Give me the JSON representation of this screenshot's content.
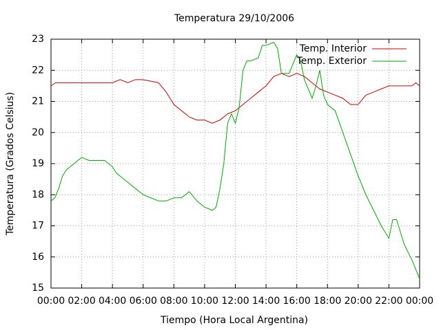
{
  "chart_data": {
    "type": "line",
    "title": "Temperatura 29/10/2006",
    "xlabel": "Tiempo (Hora Local Argentina)",
    "ylabel": "Temperatura (Grados Celsius)",
    "xlim": [
      0,
      24
    ],
    "xticks": [
      {
        "value": 0,
        "label": "00:00"
      },
      {
        "value": 2,
        "label": "02:00"
      },
      {
        "value": 4,
        "label": "04:00"
      },
      {
        "value": 6,
        "label": "06:00"
      },
      {
        "value": 8,
        "label": "08:00"
      },
      {
        "value": 10,
        "label": "10:00"
      },
      {
        "value": 12,
        "label": "12:00"
      },
      {
        "value": 14,
        "label": "14:00"
      },
      {
        "value": 16,
        "label": "16:00"
      },
      {
        "value": 18,
        "label": "18:00"
      },
      {
        "value": 20,
        "label": "20:00"
      },
      {
        "value": 22,
        "label": "22:00"
      },
      {
        "value": 24,
        "label": "00:00"
      }
    ],
    "ylim": [
      15,
      23
    ],
    "yticks": [
      15,
      16,
      17,
      18,
      19,
      20,
      21,
      22,
      23
    ],
    "grid": true,
    "legend": "top right",
    "series": [
      {
        "name": "Temp. Interior",
        "color": "#cc0000",
        "x": [
          0,
          0.3,
          4,
          4.5,
          5,
          5.5,
          6,
          7,
          7.5,
          8,
          8.5,
          9,
          9.5,
          10,
          10.5,
          11,
          11.5,
          12,
          12.5,
          13,
          13.5,
          14,
          14.5,
          15,
          15.5,
          16,
          16.5,
          17,
          17.5,
          18,
          18.5,
          19,
          19.5,
          20,
          20.5,
          21,
          21.5,
          22,
          23,
          23.5,
          23.75,
          24
        ],
        "values": [
          21.5,
          21.6,
          21.6,
          21.7,
          21.6,
          21.7,
          21.7,
          21.6,
          21.3,
          20.9,
          20.7,
          20.5,
          20.4,
          20.4,
          20.3,
          20.4,
          20.6,
          20.7,
          20.9,
          21.1,
          21.3,
          21.5,
          21.8,
          21.9,
          21.8,
          21.9,
          21.8,
          21.6,
          21.4,
          21.3,
          21.2,
          21.1,
          20.9,
          20.9,
          21.2,
          21.3,
          21.4,
          21.5,
          21.5,
          21.5,
          21.6,
          21.5
        ]
      },
      {
        "name": "Temp. Exterior",
        "color": "#00aa00",
        "x": [
          0,
          0.25,
          0.5,
          0.75,
          1,
          1.5,
          2,
          2.5,
          3,
          3.5,
          4,
          4.25,
          4.5,
          5,
          5.5,
          6,
          6.5,
          7,
          7.5,
          8,
          8.5,
          9,
          9.5,
          10,
          10.5,
          10.75,
          11,
          11.25,
          11.5,
          11.75,
          12,
          12.25,
          12.5,
          12.75,
          13,
          13.5,
          13.75,
          14,
          14.5,
          14.75,
          15,
          15.5,
          16,
          16.25,
          16.5,
          17,
          17.25,
          17.5,
          17.75,
          18,
          18.5,
          19,
          19.5,
          20,
          20.5,
          21,
          21.5,
          22,
          22.25,
          22.5,
          23,
          23.5,
          24
        ],
        "values": [
          17.8,
          17.9,
          18.2,
          18.6,
          18.8,
          19.0,
          19.2,
          19.1,
          19.1,
          19.1,
          18.9,
          18.7,
          18.6,
          18.4,
          18.2,
          18.0,
          17.9,
          17.8,
          17.8,
          17.9,
          17.9,
          18.1,
          17.8,
          17.6,
          17.5,
          17.6,
          18.2,
          19.0,
          20.3,
          20.6,
          20.3,
          20.8,
          22.0,
          22.3,
          22.3,
          22.4,
          22.8,
          22.8,
          22.9,
          22.7,
          21.9,
          21.9,
          22.5,
          22.3,
          21.7,
          21.1,
          21.5,
          22.0,
          21.2,
          20.9,
          20.7,
          20.0,
          19.3,
          18.6,
          18.0,
          17.5,
          17.0,
          16.6,
          17.2,
          17.2,
          16.4,
          15.9,
          15.3
        ]
      }
    ]
  }
}
